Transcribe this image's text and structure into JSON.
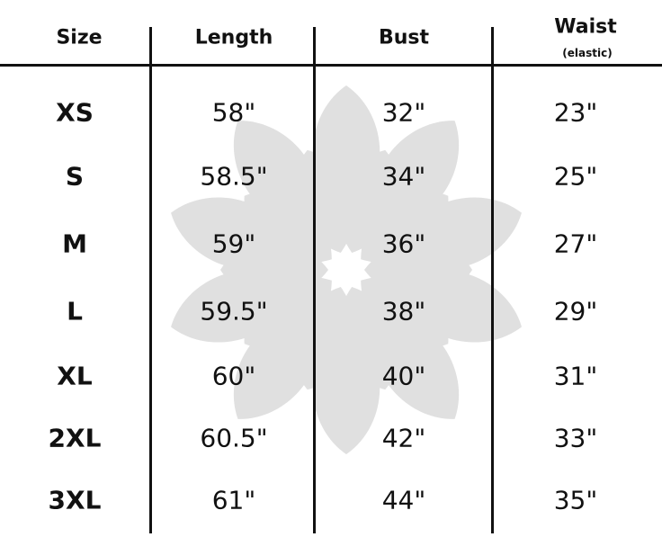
{
  "headers": {
    "size": "Size",
    "length": "Length",
    "bust": "Bust",
    "waist": "Waist",
    "waist_note": "(elastic)"
  },
  "rows": [
    {
      "size": "XS",
      "length": "58\"",
      "bust": "32\"",
      "waist": "23\""
    },
    {
      "size": "S",
      "length": "58.5\"",
      "bust": "34\"",
      "waist": "25\""
    },
    {
      "size": "M",
      "length": "59\"",
      "bust": "36\"",
      "waist": "27\""
    },
    {
      "size": "L",
      "length": "59.5\"",
      "bust": "38\"",
      "waist": "29\""
    },
    {
      "size": "XL",
      "length": "60\"",
      "bust": "40\"",
      "waist": "31\""
    },
    {
      "size": "2XL",
      "length": "60.5\"",
      "bust": "42\"",
      "waist": "33\""
    },
    {
      "size": "3XL",
      "length": "61\"",
      "bust": "44\"",
      "waist": "35\""
    }
  ],
  "colors": {
    "watermark": "#e0e0e0",
    "text": "#111111"
  },
  "watermark_icon": "flower-icon"
}
